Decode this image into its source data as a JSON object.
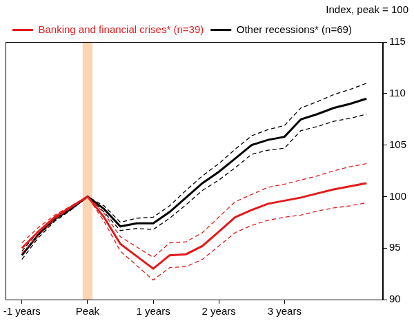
{
  "chart_data": {
    "type": "line",
    "y_label": "Index, peak = 100",
    "x": [
      -4,
      -3,
      -2,
      -1,
      0,
      1,
      2,
      3,
      4,
      5,
      6,
      7,
      8,
      9,
      10,
      11,
      12,
      13,
      14,
      15,
      16,
      17
    ],
    "xlim": [
      -5,
      18
    ],
    "xticks": [
      {
        "value": -4,
        "label": "-1 years"
      },
      {
        "value": 0,
        "label": "Peak"
      },
      {
        "value": 4,
        "label": "1 years"
      },
      {
        "value": 8,
        "label": "2 years"
      },
      {
        "value": 12,
        "label": "3 years"
      }
    ],
    "ylim": [
      90,
      115
    ],
    "yticks": [
      90,
      95,
      100,
      105,
      110,
      115
    ],
    "grid": false,
    "legend": "top-left",
    "highlight": {
      "x": [
        -0.3,
        0.3
      ],
      "color": "#fcd5b5"
    },
    "series": [
      {
        "name": "Banking and financial crises* (n=39)",
        "color": "#e31a1c",
        "line_style": "solid",
        "values": [
          95.0,
          96.6,
          98.0,
          99.0,
          100,
          98.0,
          95.4,
          94.2,
          93.0,
          94.3,
          94.4,
          95.2,
          96.6,
          98.0,
          98.7,
          99.3,
          99.6,
          99.9,
          100.3,
          100.7,
          101.0,
          101.3
        ],
        "lower": [
          94.5,
          96.2,
          97.8,
          98.9,
          100,
          97.6,
          94.7,
          93.3,
          91.9,
          93.1,
          93.2,
          93.9,
          95.2,
          96.5,
          97.2,
          97.7,
          98.0,
          98.2,
          98.6,
          98.9,
          99.1,
          99.4
        ],
        "upper": [
          95.5,
          97.0,
          98.2,
          99.1,
          100,
          98.4,
          96.1,
          95.1,
          94.1,
          95.5,
          95.6,
          96.5,
          98.0,
          99.5,
          100.2,
          100.9,
          101.2,
          101.6,
          102.0,
          102.5,
          102.9,
          103.2
        ]
      },
      {
        "name": "Other recessions* (n=69)",
        "color": "#000000",
        "line_style": "solid",
        "values": [
          94.3,
          96.3,
          97.8,
          98.8,
          100,
          98.8,
          97.1,
          97.4,
          97.4,
          98.5,
          99.9,
          101.3,
          102.4,
          103.7,
          105.0,
          105.5,
          105.8,
          107.5,
          108.0,
          108.6,
          109.0,
          109.5
        ],
        "lower": [
          93.9,
          96.0,
          97.6,
          98.7,
          100,
          98.5,
          96.7,
          96.9,
          96.8,
          97.9,
          99.2,
          100.6,
          101.6,
          102.8,
          104.1,
          104.5,
          104.7,
          106.4,
          106.8,
          107.3,
          107.6,
          108.0
        ],
        "upper": [
          94.7,
          96.6,
          98.0,
          98.9,
          100,
          99.1,
          97.5,
          97.9,
          98.0,
          99.1,
          100.6,
          102.0,
          103.2,
          104.6,
          105.9,
          106.5,
          106.9,
          108.6,
          109.2,
          109.9,
          110.4,
          111.0
        ]
      }
    ]
  }
}
